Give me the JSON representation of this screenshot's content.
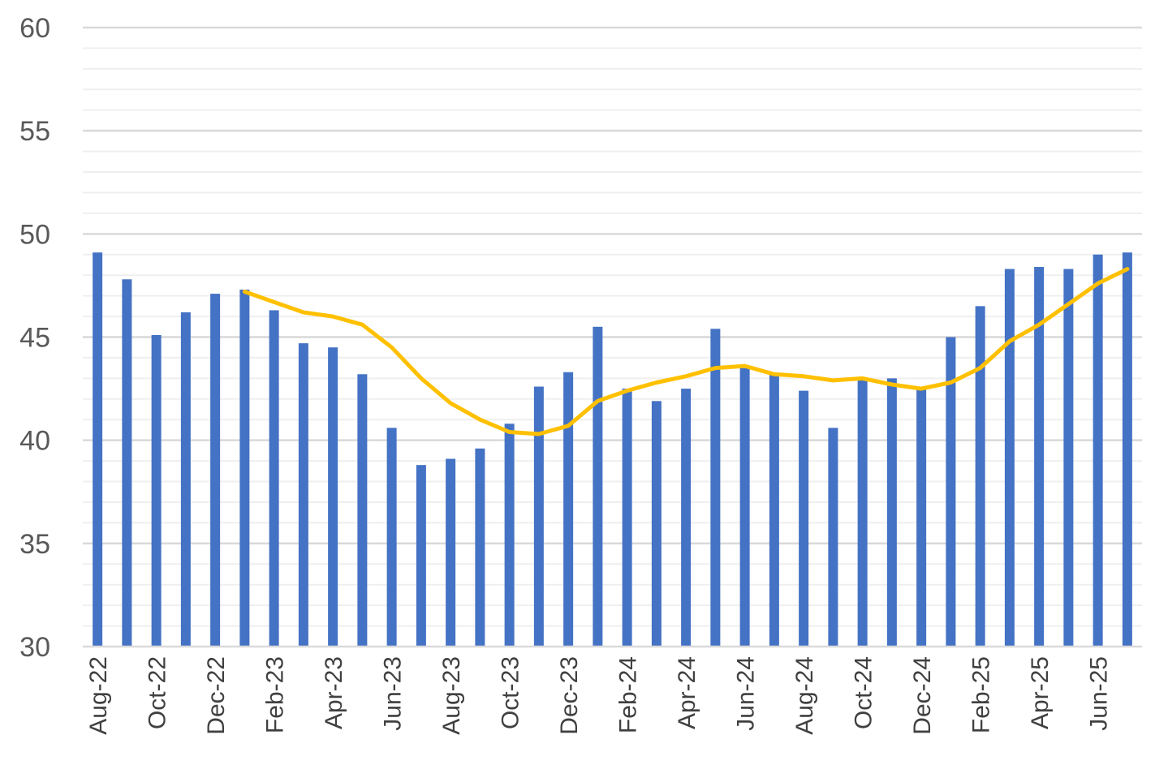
{
  "chart_data": {
    "type": "bar",
    "title": "",
    "xlabel": "",
    "ylabel": "",
    "ylim": [
      30,
      60
    ],
    "y_major_ticks": [
      "30",
      "35",
      "40",
      "45",
      "50",
      "55",
      "60"
    ],
    "grid": "major and minor horizontal gridlines",
    "legend": "none",
    "categories": [
      "Aug-22",
      "Sep-22",
      "Oct-22",
      "Nov-22",
      "Dec-22",
      "Jan-23",
      "Feb-23",
      "Mar-23",
      "Apr-23",
      "May-23",
      "Jun-23",
      "Jul-23",
      "Aug-23",
      "Sep-23",
      "Oct-23",
      "Nov-23",
      "Dec-23",
      "Jan-24",
      "Feb-24",
      "Mar-24",
      "Apr-24",
      "May-24",
      "Jun-24",
      "Jul-24",
      "Aug-24",
      "Sep-24",
      "Oct-24",
      "Nov-24",
      "Dec-24",
      "Jan-25",
      "Feb-25",
      "Mar-25",
      "Apr-25",
      "May-25",
      "Jun-25",
      "Jul-25"
    ],
    "x_tick_labels": [
      "Aug-22",
      "",
      "Oct-22",
      "",
      "Dec-22",
      "",
      "Feb-23",
      "",
      "Apr-23",
      "",
      "Jun-23",
      "",
      "Aug-23",
      "",
      "Oct-23",
      "",
      "Dec-23",
      "",
      "Feb-24",
      "",
      "Apr-24",
      "",
      "Jun-24",
      "",
      "Aug-24",
      "",
      "Oct-24",
      "",
      "Dec-24",
      "",
      "Feb-25",
      "",
      "Apr-25",
      "",
      "Jun-25",
      ""
    ],
    "series": [
      {
        "type": "bar",
        "color": "#4472C4",
        "values": [
          49.1,
          47.8,
          45.1,
          46.2,
          47.1,
          47.3,
          46.3,
          44.7,
          44.5,
          43.2,
          40.6,
          38.8,
          39.1,
          39.6,
          40.8,
          42.6,
          43.3,
          45.5,
          42.5,
          41.9,
          42.5,
          45.4,
          43.5,
          43.2,
          42.4,
          40.6,
          42.9,
          43.0,
          42.5,
          45.0,
          46.5,
          48.3,
          48.4,
          48.3,
          49.0,
          49.1
        ]
      },
      {
        "type": "line",
        "color": "#FFC000",
        "values": [
          null,
          null,
          null,
          null,
          null,
          47.2,
          46.7,
          46.2,
          46.0,
          45.6,
          44.5,
          43.0,
          41.8,
          41.0,
          40.4,
          40.3,
          40.7,
          41.9,
          42.4,
          42.8,
          43.1,
          43.5,
          43.6,
          43.2,
          43.1,
          42.9,
          43.0,
          42.7,
          42.5,
          42.8,
          43.5,
          44.8,
          45.6,
          46.6,
          47.6,
          48.3
        ]
      }
    ]
  }
}
